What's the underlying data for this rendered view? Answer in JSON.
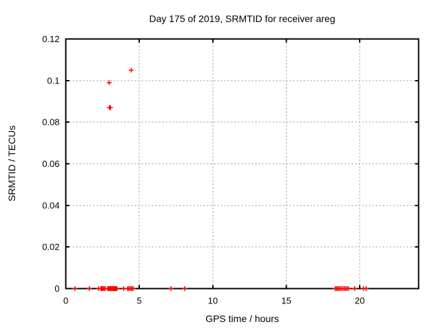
{
  "window": {
    "background": "#ffffff"
  },
  "chart_data": {
    "type": "scatter",
    "title": "Day 175 of 2019, SRMTID for receiver areg",
    "xlabel": "GPS time / hours",
    "ylabel": "SRMTID / TECUs",
    "xlim": [
      0,
      24
    ],
    "ylim": [
      0,
      0.12
    ],
    "xticks": [
      0,
      5,
      10,
      15,
      20
    ],
    "xtick_labels": [
      "0",
      "5",
      "10",
      "15",
      "20"
    ],
    "yticks": [
      0,
      0.02,
      0.04,
      0.06,
      0.08,
      0.1,
      0.12
    ],
    "ytick_labels": [
      "0",
      "0.02",
      "0.04",
      "0.06",
      "0.08",
      "0.1",
      "0.12"
    ],
    "grid": true,
    "legend": "none",
    "grid_color": "#909090",
    "border_color": "#000000",
    "text_color": "#000000",
    "marker": {
      "shape": "plus",
      "color": "#ff0000",
      "size": 7
    },
    "series": [
      {
        "name": "SRMTID",
        "points": [
          [
            0.62,
            0
          ],
          [
            1.6,
            0
          ],
          [
            2.24,
            0
          ],
          [
            2.39,
            0
          ],
          [
            2.45,
            0
          ],
          [
            2.52,
            0
          ],
          [
            2.6,
            0
          ],
          [
            2.68,
            0
          ],
          [
            2.85,
            0
          ],
          [
            2.92,
            0
          ],
          [
            2.99,
            0
          ],
          [
            3.06,
            0
          ],
          [
            3.13,
            0
          ],
          [
            3.2,
            0
          ],
          [
            3.27,
            0
          ],
          [
            3.34,
            0
          ],
          [
            3.41,
            0
          ],
          [
            3.48,
            0
          ],
          [
            3.93,
            0
          ],
          [
            4.21,
            0
          ],
          [
            4.3,
            0
          ],
          [
            4.4,
            0
          ],
          [
            4.49,
            0
          ],
          [
            4.58,
            0
          ],
          [
            7.16,
            0
          ],
          [
            8.09,
            0
          ],
          [
            18.33,
            0
          ],
          [
            18.42,
            0
          ],
          [
            18.51,
            0
          ],
          [
            18.6,
            0
          ],
          [
            18.7,
            0
          ],
          [
            18.8,
            0
          ],
          [
            18.92,
            0
          ],
          [
            19.02,
            0
          ],
          [
            19.12,
            0
          ],
          [
            19.22,
            0
          ],
          [
            19.65,
            0
          ],
          [
            20.25,
            0
          ],
          [
            20.43,
            0
          ],
          [
            2.95,
            0.099
          ],
          [
            2.97,
            0.087
          ],
          [
            3.03,
            0.087
          ],
          [
            4.45,
            0.105
          ]
        ]
      }
    ]
  }
}
